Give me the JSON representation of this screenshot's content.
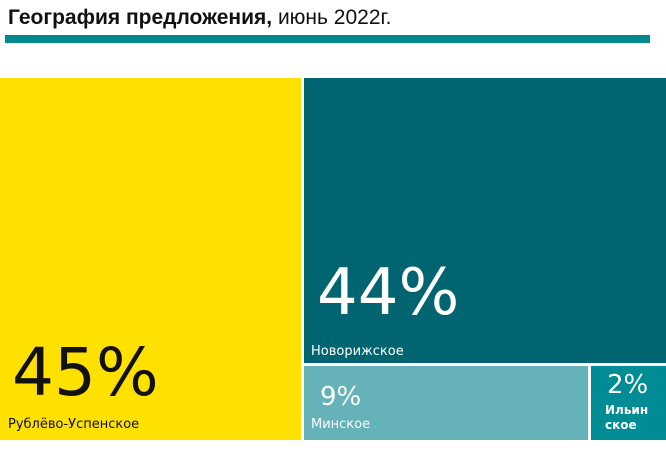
{
  "chart_data": {
    "type": "treemap",
    "title": "География предложения,",
    "subtitle": "июнь 2022г.",
    "categories": [
      "Рублёво-Успенское",
      "Новорижское",
      "Минское",
      "Ильинское"
    ],
    "values": [
      45,
      44,
      9,
      2
    ],
    "value_labels": [
      "45%",
      "44%",
      "9%",
      "2%"
    ],
    "labels_display": {
      "rublevo": "Рублёво-Успенское",
      "novoriga": "Новорижское",
      "minsk": "Минское",
      "ilyinskoe": "Ильинское"
    },
    "colors": {
      "rublevo": "#FFE100",
      "novoriga": "#006570",
      "minsk": "#65B2B8",
      "ilyinskoe": "#008C95",
      "title_rule": "#008A8F",
      "dark_text": "#111111",
      "light_text": "#ffffff"
    }
  }
}
